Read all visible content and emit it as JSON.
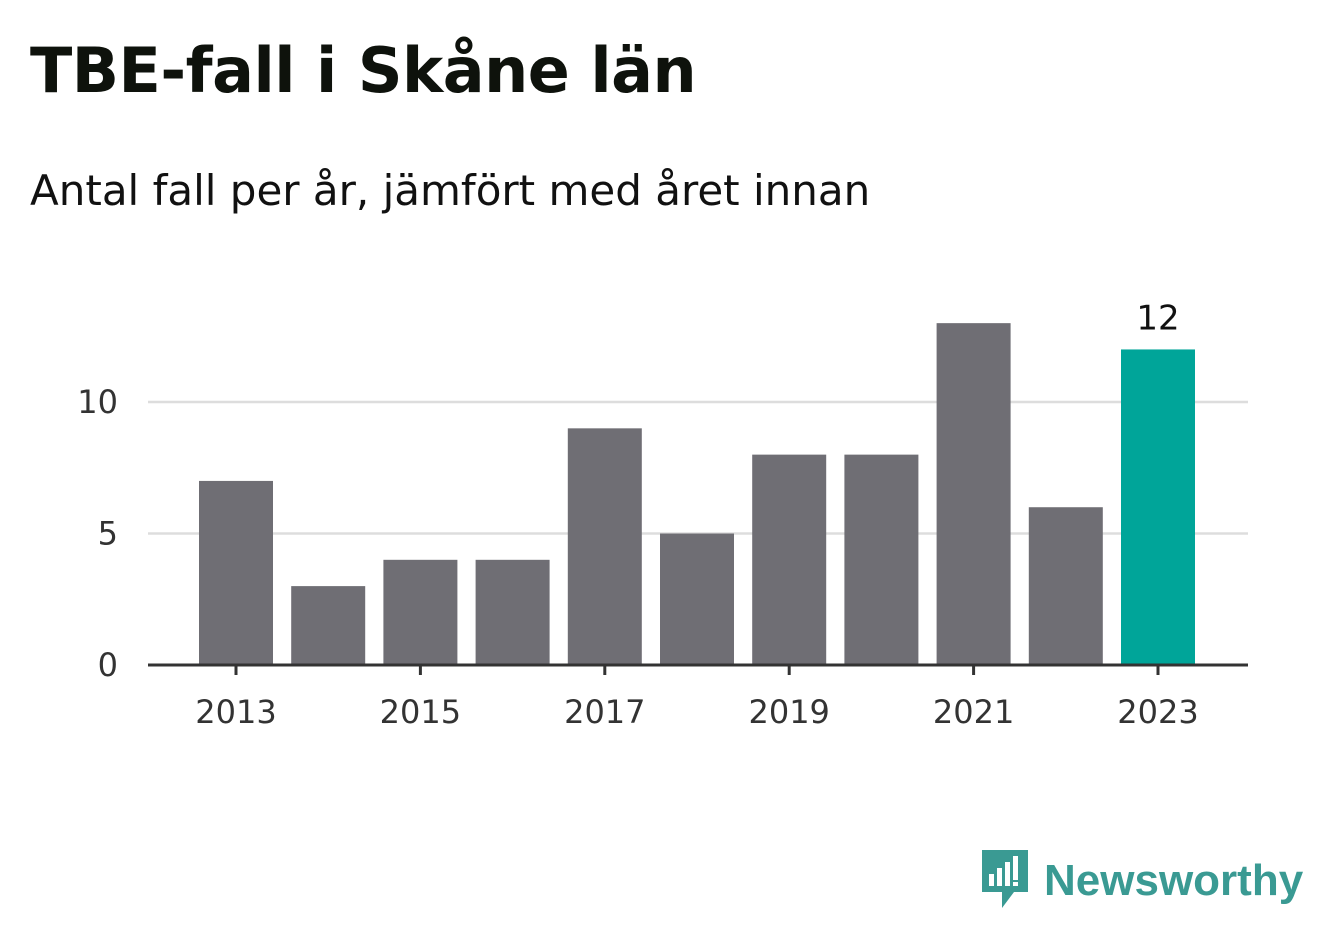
{
  "header": {
    "title": "TBE-fall i Skåne län",
    "subtitle": "Antal fall per år, jämfört med året innan"
  },
  "brand": {
    "name": "Newsworthy",
    "icon": "newsworthy-chart-bubble-icon",
    "color": "#3a9a93"
  },
  "chart_data": {
    "type": "bar",
    "title": "TBE-fall i Skåne län",
    "subtitle": "Antal fall per år, jämfört med året innan",
    "xlabel": "",
    "ylabel": "",
    "categories": [
      "2013",
      "2014",
      "2015",
      "2016",
      "2017",
      "2018",
      "2019",
      "2020",
      "2021",
      "2022",
      "2023"
    ],
    "x_tick_labels": [
      "2013",
      "2015",
      "2017",
      "2019",
      "2021",
      "2023"
    ],
    "values": [
      7,
      3,
      4,
      4,
      9,
      5,
      8,
      8,
      13,
      6,
      12
    ],
    "ylim": [
      0,
      13.5
    ],
    "y_ticks": [
      0,
      5,
      10
    ],
    "grid": true,
    "highlight": {
      "category": "2023",
      "label": "12"
    },
    "colors": {
      "bar": "#6f6e74",
      "highlight": "#00a599",
      "grid": "#dddddd",
      "axis": "#333333"
    }
  }
}
